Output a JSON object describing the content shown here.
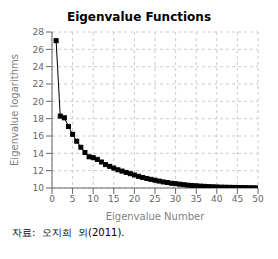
{
  "chart_data": {
    "type": "line",
    "title": "Eigenvalue Functions",
    "xlabel": "Eigenvalue Number",
    "ylabel": "Eigenvalue logarithms",
    "annotations": [
      "자료:  오지희  외(2011)."
    ],
    "x": [
      1,
      2,
      3,
      4,
      5,
      6,
      7,
      8,
      9,
      10,
      11,
      12,
      13,
      14,
      15,
      16,
      17,
      18,
      19,
      20,
      21,
      22,
      23,
      24,
      25,
      26,
      27,
      28,
      29,
      30,
      31,
      32,
      33,
      34,
      35,
      36,
      37,
      38,
      39,
      40,
      41,
      42,
      43,
      44,
      45,
      46,
      47,
      48,
      49,
      50
    ],
    "values": [
      27.0,
      18.3,
      18.1,
      17.1,
      16.2,
      15.4,
      14.7,
      14.1,
      13.6,
      13.5,
      13.3,
      13.0,
      12.7,
      12.5,
      12.3,
      12.1,
      11.95,
      11.8,
      11.65,
      11.5,
      11.35,
      11.22,
      11.1,
      11.0,
      10.9,
      10.8,
      10.7,
      10.63,
      10.55,
      10.5,
      10.44,
      10.38,
      10.33,
      10.29,
      10.25,
      10.22,
      10.19,
      10.16,
      10.14,
      10.12,
      10.1,
      10.09,
      10.08,
      10.07,
      10.06,
      10.05,
      10.04,
      10.03,
      10.02,
      10.01
    ],
    "color": "black",
    "marker": "square",
    "xlim": [
      0,
      50
    ],
    "ylim": [
      10,
      28
    ],
    "xticks": [
      0,
      5,
      10,
      15,
      20,
      25,
      30,
      35,
      40,
      45,
      50
    ],
    "yticks": [
      10,
      12,
      14,
      16,
      18,
      20,
      22,
      24,
      26,
      28
    ],
    "grid": true
  }
}
